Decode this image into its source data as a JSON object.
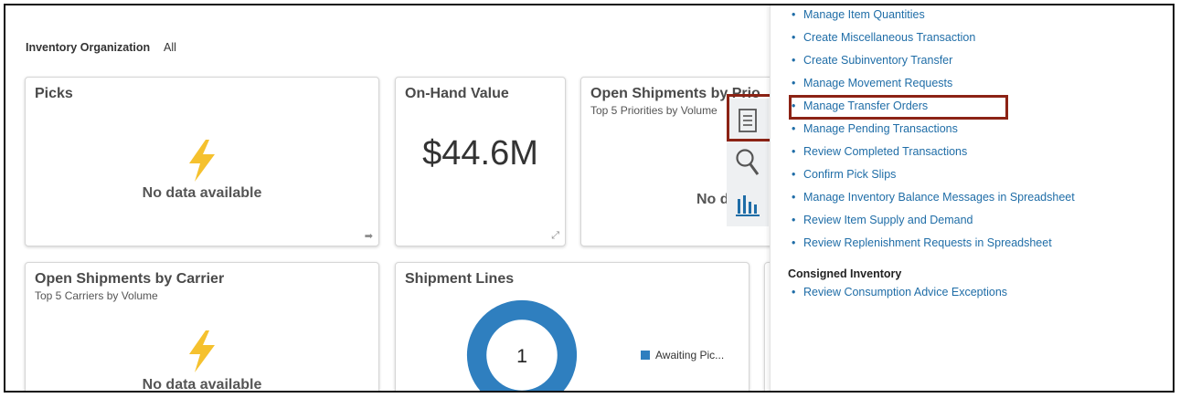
{
  "filter": {
    "label": "Inventory Organization",
    "value": "All"
  },
  "tiles": {
    "picks": {
      "title": "Picks",
      "message": "No data available"
    },
    "onhand": {
      "title": "On-Hand Value",
      "value": "$44.6M"
    },
    "open_priority": {
      "title": "Open Shipments by Prio",
      "subtitle": "Top 5 Priorities by Volume",
      "message": "No d"
    },
    "open_carrier": {
      "title": "Open Shipments by Carrier",
      "subtitle": "Top 5 Carriers by Volume",
      "message": "No data available"
    },
    "shipment_lines": {
      "title": "Shipment Lines",
      "center_value": "1",
      "legend": "Awaiting Pic..."
    }
  },
  "side_icons": [
    "tasks-icon",
    "search-icon",
    "reports-icon"
  ],
  "tasks_panel": {
    "items": [
      "Manage Item Quantities",
      "Create Miscellaneous Transaction",
      "Create Subinventory Transfer",
      "Manage Movement Requests",
      "Manage Transfer Orders",
      "Manage Pending Transactions",
      "Review Completed Transactions",
      "Confirm Pick Slips",
      "Manage Inventory Balance Messages in Spreadsheet",
      "Review Item Supply and Demand",
      "Review Replenishment Requests in Spreadsheet"
    ],
    "consigned_heading": "Consigned Inventory",
    "consigned_items": [
      "Review Consumption Advice Exceptions"
    ],
    "highlighted_item": "Manage Transfer Orders"
  },
  "colors": {
    "link": "#1f6da7",
    "highlight": "#8c2315",
    "donut": "#2f7fbf",
    "bolt": "#f5c12e"
  }
}
